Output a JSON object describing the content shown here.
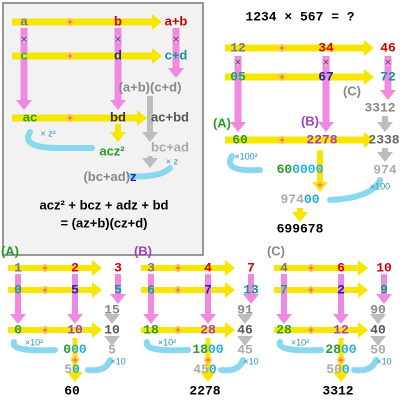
{
  "tutorial": {
    "a": "a",
    "b": "b",
    "a_plus_b": "a+b",
    "c": "c",
    "d": "d",
    "c_plus_d": "c+d",
    "cross": "(a+b)(c+d)",
    "ac": "ac",
    "bd": "bd",
    "ac_plus_bd": "ac+bd",
    "times_z2": "× z²",
    "acz2": "acz²",
    "bc_ad": "bc+ad",
    "times_z": "× z",
    "bc_ad_paren": "(bc+ad)",
    "z": "z",
    "formula_1": "acz² + bcz + adz + bd",
    "formula_2": "= (az+b)(cz+d)"
  },
  "example": {
    "title": "1234 × 567 = ?",
    "row_1": [
      "12",
      "34",
      "46"
    ],
    "row_2": [
      "05",
      "67",
      "72"
    ],
    "label_c": "(C)",
    "cross": "3312",
    "label_a": "(A)",
    "ac": "60",
    "label_b": "(B)",
    "bd": "2278",
    "ac_plus_bd": "2338",
    "times_high": "×100²",
    "shifted_high": [
      "60",
      "0000"
    ],
    "middle": "974",
    "times_mid": "×100",
    "shifted_mid": [
      "974",
      "00"
    ],
    "result": "699678"
  },
  "panels": [
    {
      "label": "(A)",
      "row_1": [
        "1",
        "2",
        "3"
      ],
      "row_2": [
        "0",
        "5",
        "5"
      ],
      "cross": "15",
      "row_3": [
        "0",
        "10",
        "10"
      ],
      "middle": "5",
      "times_high": "×10²",
      "shifted_high": [
        "0",
        "00"
      ],
      "times_mid": "×10",
      "shifted_mid": [
        "5",
        "0"
      ],
      "result": "60"
    },
    {
      "label": "(B)",
      "row_1": [
        "3",
        "4",
        "7"
      ],
      "row_2": [
        "6",
        "7",
        "13"
      ],
      "cross": "91",
      "row_3": [
        "18",
        "28",
        "46"
      ],
      "middle": "45",
      "times_high": "×10²",
      "shifted_high": [
        "18",
        "00"
      ],
      "times_mid": "×10",
      "shifted_mid": [
        "45",
        "0"
      ],
      "result": "2278"
    },
    {
      "label": "(C)",
      "row_1": [
        "4",
        "6",
        "10"
      ],
      "row_2": [
        "7",
        "2",
        "9"
      ],
      "cross": "90",
      "row_3": [
        "28",
        "12",
        "40"
      ],
      "middle": "50",
      "times_high": "×10²",
      "shifted_high": [
        "28",
        "00"
      ],
      "times_mid": "×10",
      "shifted_mid": [
        "50",
        "0"
      ],
      "result": "3312"
    }
  ]
}
